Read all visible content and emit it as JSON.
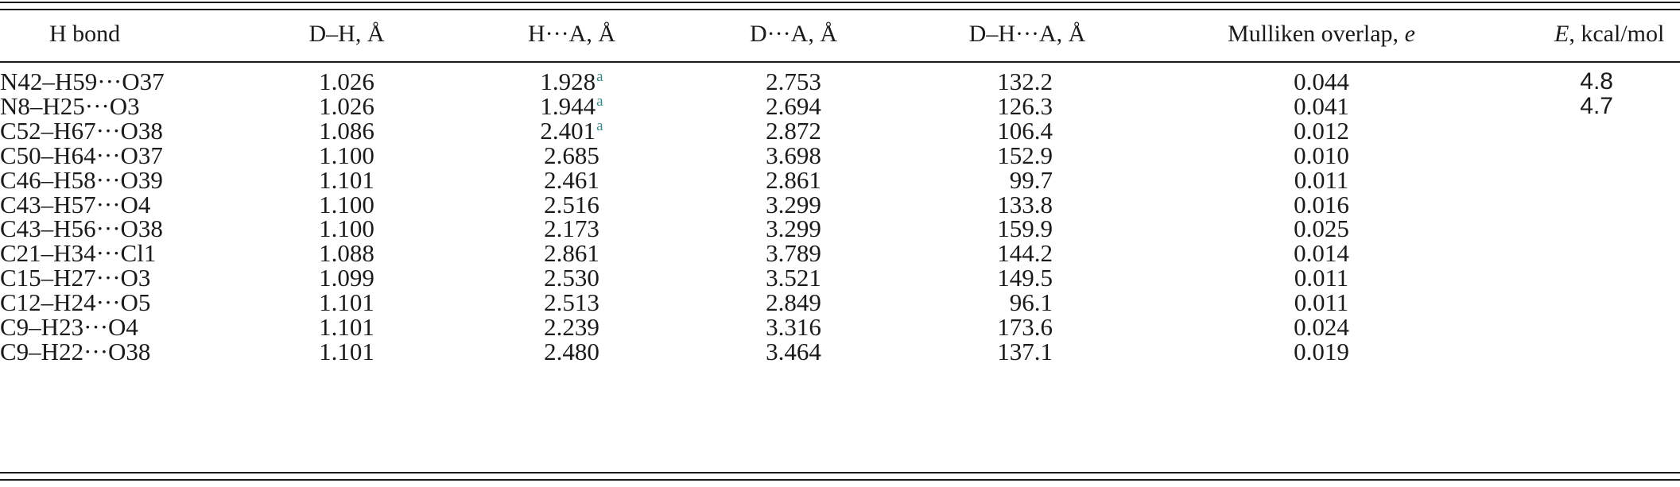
{
  "table": {
    "headers": {
      "bond": "H bond",
      "dh": "D–H, Å",
      "ha": "H···A, Å",
      "da": "D···A, Å",
      "dha": "D–H···A, Å",
      "mulliken_prefix": "Mulliken overlap, ",
      "mulliken_unit": "e",
      "energy_symbol": "E",
      "energy_suffix": ", kcal/mol"
    },
    "footnote_mark": "a",
    "rows": [
      {
        "bond": "N42–H59···O37",
        "dh": "1.026",
        "ha": "1.928",
        "ha_note": "a",
        "da": "2.753",
        "dha": "132.2",
        "mulliken": "0.044",
        "energy": "4.8"
      },
      {
        "bond": "N8–H25···O3",
        "dh": "1.026",
        "ha": "1.944",
        "ha_note": "a",
        "da": "2.694",
        "dha": "126.3",
        "mulliken": "0.041",
        "energy": "4.7"
      },
      {
        "bond": "C52–H67···O38",
        "dh": "1.086",
        "ha": "2.401",
        "ha_note": "a",
        "da": "2.872",
        "dha": "106.4",
        "mulliken": "0.012",
        "energy": ""
      },
      {
        "bond": "C50–H64···O37",
        "dh": "1.100",
        "ha": "2.685",
        "ha_note": "",
        "da": "3.698",
        "dha": "152.9",
        "mulliken": "0.010",
        "energy": ""
      },
      {
        "bond": "C46–H58···O39",
        "dh": "1.101",
        "ha": "2.461",
        "ha_note": "",
        "da": "2.861",
        "dha": "99.7",
        "mulliken": "0.011",
        "energy": ""
      },
      {
        "bond": "C43–H57···O4",
        "dh": "1.100",
        "ha": "2.516",
        "ha_note": "",
        "da": "3.299",
        "dha": "133.8",
        "mulliken": "0.016",
        "energy": ""
      },
      {
        "bond": "C43–H56···O38",
        "dh": "1.100",
        "ha": "2.173",
        "ha_note": "",
        "da": "3.299",
        "dha": "159.9",
        "mulliken": "0.025",
        "energy": ""
      },
      {
        "bond": "C21–H34···Cl1",
        "dh": "1.088",
        "ha": "2.861",
        "ha_note": "",
        "da": "3.789",
        "dha": "144.2",
        "mulliken": "0.014",
        "energy": ""
      },
      {
        "bond": "C15–H27···O3",
        "dh": "1.099",
        "ha": "2.530",
        "ha_note": "",
        "da": "3.521",
        "dha": "149.5",
        "mulliken": "0.011",
        "energy": ""
      },
      {
        "bond": "C12–H24···O5",
        "dh": "1.101",
        "ha": "2.513",
        "ha_note": "",
        "da": "2.849",
        "dha": "96.1",
        "mulliken": "0.011",
        "energy": ""
      },
      {
        "bond": "C9–H23···O4",
        "dh": "1.101",
        "ha": "2.239",
        "ha_note": "",
        "da": "3.316",
        "dha": "173.6",
        "mulliken": "0.024",
        "energy": ""
      },
      {
        "bond": "C9–H22···O38",
        "dh": "1.101",
        "ha": "2.480",
        "ha_note": "",
        "da": "3.464",
        "dha": "137.1",
        "mulliken": "0.019",
        "energy": ""
      }
    ]
  }
}
